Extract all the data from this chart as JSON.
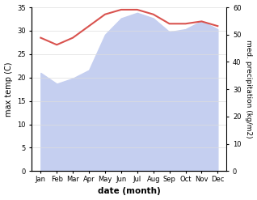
{
  "months": [
    "Jan",
    "Feb",
    "Mar",
    "Apr",
    "May",
    "Jun",
    "Jul",
    "Aug",
    "Sep",
    "Oct",
    "Nov",
    "Dec"
  ],
  "month_x": [
    0,
    1,
    2,
    3,
    4,
    5,
    6,
    7,
    8,
    9,
    10,
    11
  ],
  "max_temp": [
    28.5,
    27.0,
    28.5,
    31.0,
    33.5,
    34.5,
    34.5,
    33.5,
    31.5,
    31.5,
    32.0,
    31.0
  ],
  "precipitation_mm": [
    36,
    32,
    34,
    37,
    50,
    56,
    58,
    56,
    51,
    52,
    55,
    52
  ],
  "temp_ylim": [
    0,
    35
  ],
  "precip_ylim": [
    0,
    60
  ],
  "temp_color": "#d9534f",
  "precip_fill_color": "#c5cff0",
  "xlabel": "date (month)",
  "ylabel_left": "max temp (C)",
  "ylabel_right": "med. precipitation (kg/m2)",
  "temp_yticks": [
    0,
    5,
    10,
    15,
    20,
    25,
    30,
    35
  ],
  "precip_yticks": [
    0,
    10,
    20,
    30,
    40,
    50,
    60
  ],
  "background_color": "#ffffff",
  "grid_color": "#dddddd"
}
